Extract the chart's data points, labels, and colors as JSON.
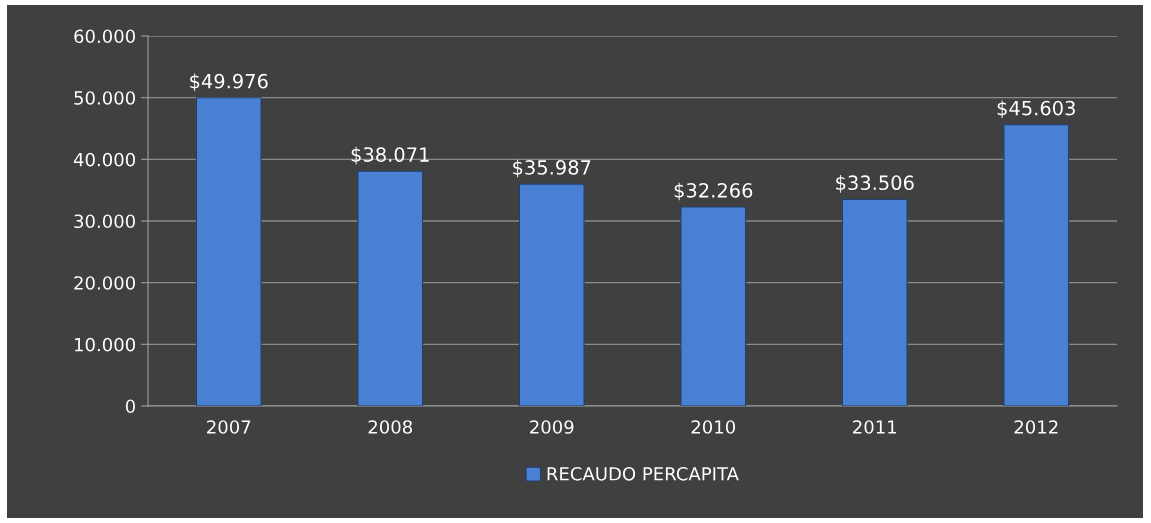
{
  "chart_data": {
    "type": "bar",
    "categories": [
      "2007",
      "2008",
      "2009",
      "2010",
      "2011",
      "2012"
    ],
    "series": [
      {
        "name": "RECAUDO PERCAPITA",
        "color": "#4a80d4",
        "values": [
          49976,
          38071,
          35987,
          32266,
          33506,
          45603
        ],
        "value_labels": [
          "$49.976",
          "$38.071",
          "$35.987",
          "$32.266",
          "$33.506",
          "$45.603"
        ]
      }
    ],
    "ylim": [
      0,
      60000
    ],
    "yticks": [
      {
        "value": 0,
        "label": "0"
      },
      {
        "value": 10000,
        "label": "10.000"
      },
      {
        "value": 20000,
        "label": "20.000"
      },
      {
        "value": 30000,
        "label": "30.000"
      },
      {
        "value": 40000,
        "label": "40.000"
      },
      {
        "value": 50000,
        "label": "50.000"
      },
      {
        "value": 60000,
        "label": "60.000"
      }
    ],
    "grid": "y",
    "legend": "bottom"
  }
}
